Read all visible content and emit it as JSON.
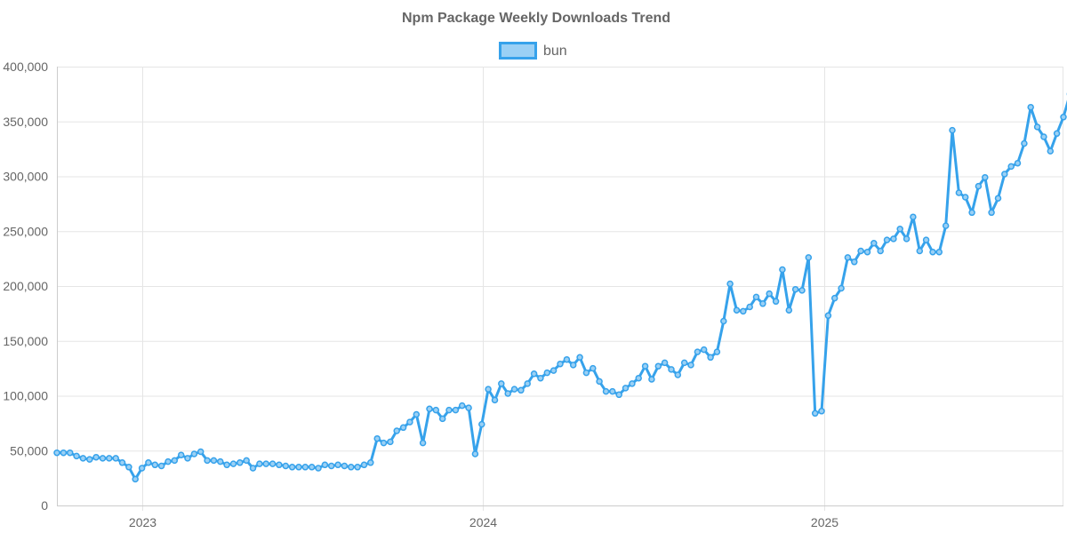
{
  "chart_data": {
    "type": "line",
    "title": "Npm Package Weekly Downloads Trend",
    "xlabel": "",
    "ylabel": "",
    "x_start": "2022-10-02",
    "x_step_days": 7,
    "xlim": [
      "2022-10-02",
      "2025-09-14"
    ],
    "x_ticks": [
      {
        "date": "2023-01-01",
        "label": "2023"
      },
      {
        "date": "2024-01-01",
        "label": "2024"
      },
      {
        "date": "2025-01-01",
        "label": "2025"
      }
    ],
    "ylim": [
      0,
      400000
    ],
    "y_ticks": [
      0,
      50000,
      100000,
      150000,
      200000,
      250000,
      300000,
      350000,
      400000
    ],
    "y_tick_labels": [
      "0",
      "50,000",
      "100,000",
      "150,000",
      "200,000",
      "250,000",
      "300,000",
      "350,000",
      "400,000"
    ],
    "grid": true,
    "legend": "top-center",
    "series": [
      {
        "name": "bun",
        "color": "#36A2EB",
        "fill": "#9AD0F5",
        "values": [
          48000,
          48000,
          48000,
          45000,
          43000,
          42000,
          44000,
          43000,
          43000,
          43000,
          39000,
          35000,
          24000,
          34000,
          39000,
          37000,
          36000,
          40000,
          41000,
          46000,
          43000,
          47000,
          49000,
          41000,
          41000,
          40000,
          37000,
          38000,
          39000,
          41000,
          34000,
          38000,
          38000,
          38000,
          37000,
          36000,
          35000,
          35000,
          35000,
          35000,
          34000,
          37000,
          36000,
          37000,
          36000,
          35000,
          35000,
          37000,
          39000,
          61000,
          57000,
          58000,
          68000,
          71000,
          76000,
          83000,
          57000,
          88000,
          87000,
          79000,
          87000,
          87000,
          91000,
          89000,
          47000,
          74000,
          106000,
          96000,
          111000,
          102000,
          106000,
          105000,
          111000,
          120000,
          116000,
          121000,
          123000,
          129000,
          133000,
          128000,
          135000,
          121000,
          125000,
          113000,
          104000,
          104000,
          101000,
          107000,
          111000,
          116000,
          127000,
          115000,
          127000,
          130000,
          124000,
          119000,
          130000,
          128000,
          140000,
          142000,
          135000,
          140000,
          168000,
          202000,
          178000,
          177000,
          181000,
          190000,
          184000,
          193000,
          186000,
          215000,
          178000,
          197000,
          196000,
          226000,
          84000,
          86000,
          173000,
          189000,
          198000,
          226000,
          222000,
          232000,
          231000,
          239000,
          232000,
          242000,
          243000,
          252000,
          243000,
          263000,
          232000,
          242000,
          231000,
          231000,
          255000,
          342000,
          285000,
          281000,
          267000,
          291000,
          299000,
          267000,
          280000,
          302000,
          309000,
          312000,
          330000,
          363000,
          345000,
          336000,
          323000,
          339000,
          354000,
          375000
        ]
      }
    ]
  }
}
